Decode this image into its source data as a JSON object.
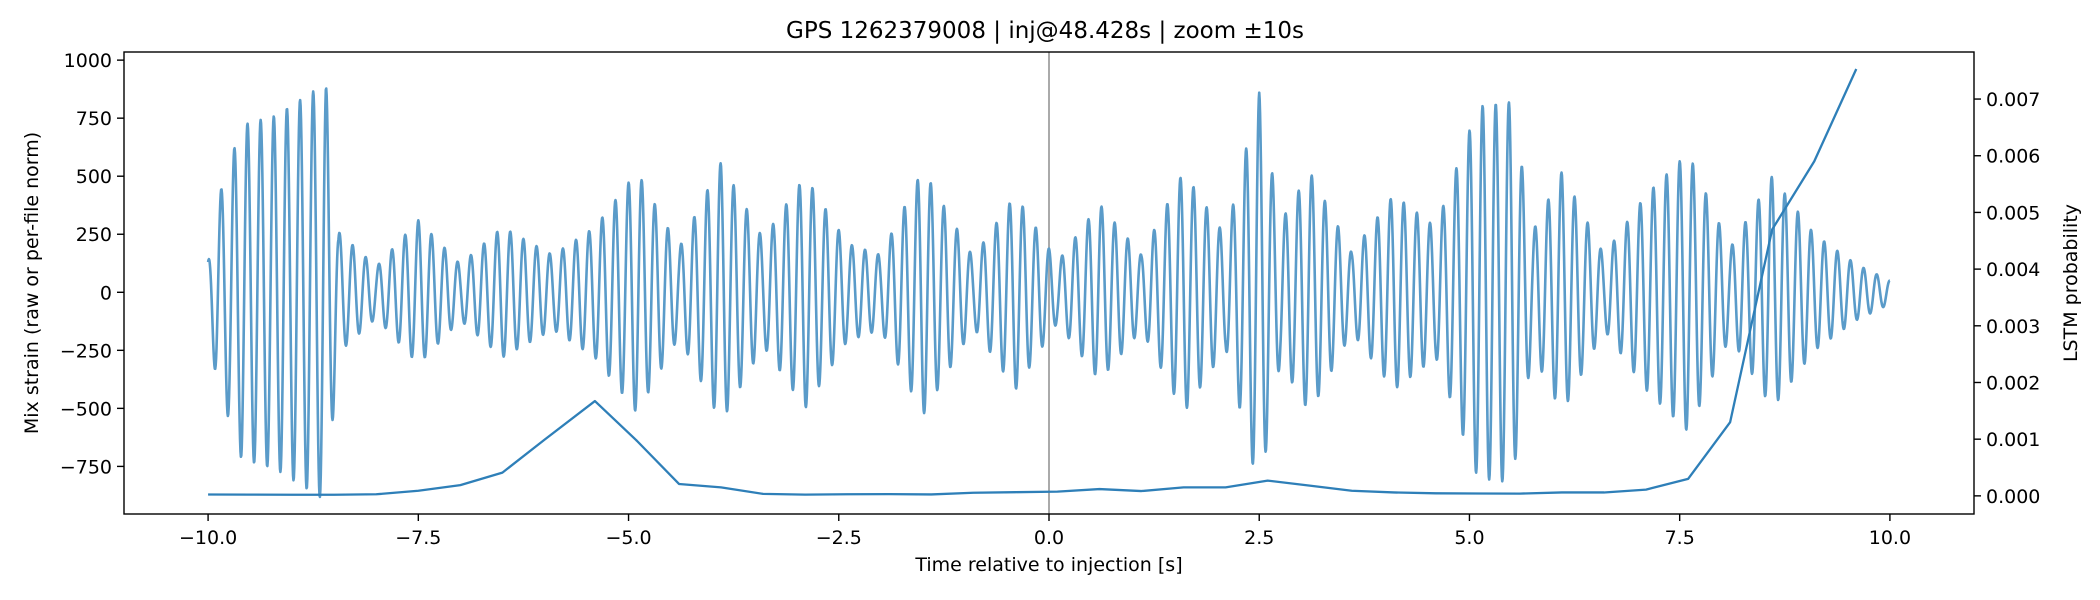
{
  "chart_data": {
    "type": "line",
    "title": "GPS 1262379008 | inj@48.428s | zoom ±10s",
    "xlabel": "Time relative to injection [s]",
    "ylabel_left": "Mix strain (raw or per-file norm)",
    "ylabel_right": "LSTM probability",
    "xlim": [
      -11.0,
      11.0
    ],
    "ylim_left": [
      -955,
      1035
    ],
    "ylim_right": [
      -0.00032,
      0.00783
    ],
    "x_ticks": [
      -10.0,
      -7.5,
      -5.0,
      -2.5,
      0.0,
      2.5,
      5.0,
      7.5,
      10.0
    ],
    "x_tick_labels": [
      "−10.0",
      "−7.5",
      "−5.0",
      "−2.5",
      "0.0",
      "2.5",
      "5.0",
      "7.5",
      "10.0"
    ],
    "y_left_ticks": [
      -750,
      -500,
      -250,
      0,
      250,
      500,
      750,
      1000
    ],
    "y_left_tick_labels": [
      "−750",
      "−500",
      "−250",
      "0",
      "250",
      "500",
      "750",
      "1000"
    ],
    "y_right_ticks": [
      0.0,
      0.001,
      0.002,
      0.003,
      0.004,
      0.005,
      0.006,
      0.007
    ],
    "y_right_tick_labels": [
      "0.000",
      "0.001",
      "0.002",
      "0.003",
      "0.004",
      "0.005",
      "0.006",
      "0.007"
    ],
    "vline": {
      "x": 0.0,
      "color": "#aaaaaa"
    },
    "grid": false,
    "strain_series": {
      "axis": "left",
      "color": "#5a9bc9",
      "carrier_cycles_per_s": 6.4,
      "start_phase_s": -10.0,
      "envelope": {
        "x": [
          -10.0,
          -9.9,
          -9.6,
          -9.2,
          -8.9,
          -8.6,
          -8.45,
          -8.0,
          -7.5,
          -7.0,
          -6.5,
          -5.9,
          -5.4,
          -4.9,
          -4.4,
          -3.9,
          -3.4,
          -2.9,
          -2.4,
          -2.0,
          -1.5,
          -0.9,
          -0.4,
          0.1,
          0.6,
          1.1,
          1.6,
          2.1,
          2.5,
          2.75,
          3.1,
          3.6,
          4.1,
          4.6,
          5.1,
          5.5,
          5.75,
          6.1,
          6.6,
          7.1,
          7.6,
          8.1,
          8.6,
          9.1,
          9.6,
          10.0
        ],
        "amplitude": [
          130,
          380,
          720,
          760,
          830,
          900,
          260,
          110,
          310,
          120,
          280,
          160,
          280,
          520,
          190,
          560,
          230,
          500,
          210,
          160,
          530,
          150,
          420,
          130,
          380,
          160,
          520,
          240,
          860,
          300,
          520,
          170,
          420,
          280,
          800,
          820,
          260,
          520,
          160,
          420,
          600,
          190,
          500,
          250,
          120,
          50
        ]
      }
    },
    "probability_series": {
      "axis": "right",
      "color": "#2e7fb8",
      "x": [
        -10.0,
        -9.5,
        -9.0,
        -8.5,
        -8.0,
        -7.5,
        -7.0,
        -6.5,
        -6.0,
        -5.4,
        -4.9,
        -4.4,
        -3.9,
        -3.4,
        -2.9,
        -2.4,
        -1.9,
        -1.4,
        -0.9,
        -0.4,
        0.1,
        0.6,
        1.1,
        1.6,
        2.1,
        2.6,
        3.1,
        3.6,
        4.1,
        4.6,
        5.1,
        5.6,
        6.1,
        6.6,
        7.1,
        7.6,
        8.1,
        8.6,
        9.1,
        9.6
      ],
      "y": [
        2.45e-05,
        2.2e-05,
        2e-05,
        1.9e-05,
        2.8e-05,
        9e-05,
        0.00019,
        0.00041,
        0.00099,
        0.001672,
        0.00097,
        0.00021,
        0.00015,
        3.5e-05,
        2.2e-05,
        2.8e-05,
        3e-05,
        2.5e-05,
        5.5e-05,
        6.5e-05,
        7.5e-05,
        0.00012,
        8.5e-05,
        0.00015,
        0.00015,
        0.000269,
        0.00018,
        9e-05,
        6e-05,
        4.5e-05,
        4.2e-05,
        4e-05,
        6e-05,
        6e-05,
        0.00011,
        0.000299,
        0.0013,
        0.0047,
        0.0059,
        0.00753
      ]
    }
  }
}
